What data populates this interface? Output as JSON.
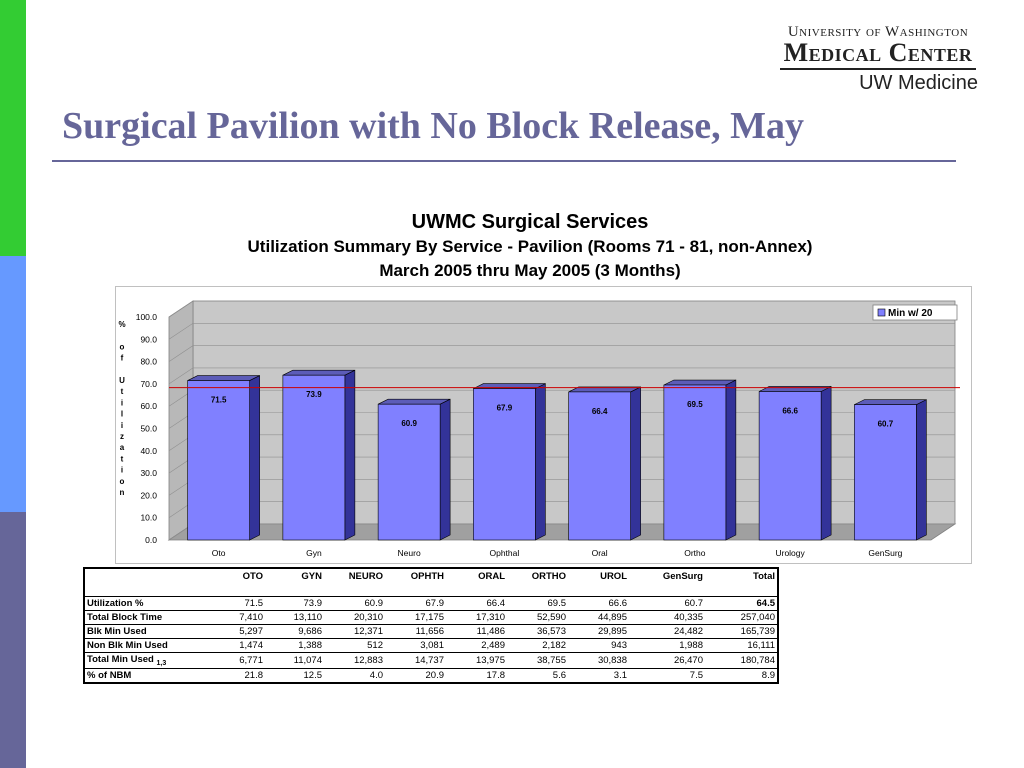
{
  "slide": {
    "title": "Surgical Pavilion with No Block Release, May",
    "accent_colors": [
      "#33cc33",
      "#6699ff",
      "#666699"
    ]
  },
  "logo": {
    "line1": "University of Washington",
    "line2": "Medical Center",
    "line3": "UW Medicine"
  },
  "heading": {
    "line1": "UWMC Surgical Services",
    "line2": "Utilization Summary By Service - Pavilion (Rooms 71 - 81, non-Annex)",
    "line3": "March 2005 thru May 2005 (3 Months)"
  },
  "chart_data": {
    "type": "bar",
    "categories": [
      "Oto",
      "Gyn",
      "Neuro",
      "Ophthal",
      "Oral",
      "Ortho",
      "Urology",
      "GenSurg"
    ],
    "values": [
      71.5,
      73.9,
      60.9,
      67.9,
      66.4,
      69.5,
      66.6,
      60.7
    ],
    "value_labels": [
      "71.5",
      "73.9",
      "60.9",
      "67.9",
      "66.4",
      "69.5",
      "66.6",
      "60.7"
    ],
    "ylabel": "% of Utilization",
    "ylim": [
      0,
      100
    ],
    "yticks": [
      "0.0",
      "10.0",
      "20.0",
      "30.0",
      "40.0",
      "50.0",
      "60.0",
      "70.0",
      "80.0",
      "90.0",
      "100.0"
    ],
    "reference_line": {
      "name": "Min w/ 20",
      "value": 69.2,
      "color": "#cc0000"
    },
    "legend": {
      "position": "top-right",
      "label": "Min w/ 20"
    },
    "bar_color": "#8080ff",
    "grid": true
  },
  "table": {
    "columns": [
      "",
      "OTO",
      "GYN",
      "NEURO",
      "OPHTH",
      "ORAL",
      "ORTHO",
      "UROL",
      "GenSurg",
      "Total"
    ],
    "rows": [
      {
        "label": "Utilization %",
        "sub": "",
        "values": [
          "71.5",
          "73.9",
          "60.9",
          "67.9",
          "66.4",
          "69.5",
          "66.6",
          "60.7"
        ],
        "total": "64.5",
        "total_bold": true
      },
      {
        "label": "Total Block Time",
        "sub": "",
        "values": [
          "7,410",
          "13,110",
          "20,310",
          "17,175",
          "17,310",
          "52,590",
          "44,895",
          "40,335"
        ],
        "total": "257,040",
        "total_bold": false
      },
      {
        "label": "Blk Min Used",
        "sub": "",
        "values": [
          "5,297",
          "9,686",
          "12,371",
          "11,656",
          "11,486",
          "36,573",
          "29,895",
          "24,482"
        ],
        "total": "165,739",
        "total_bold": false
      },
      {
        "label": "Non Blk Min Used",
        "sub": "",
        "values": [
          "1,474",
          "1,388",
          "512",
          "3,081",
          "2,489",
          "2,182",
          "943",
          "1,988"
        ],
        "total": "16,111",
        "total_bold": false
      },
      {
        "label": "Total Min Used",
        "sub": "1,3",
        "values": [
          "6,771",
          "11,074",
          "12,883",
          "14,737",
          "13,975",
          "38,755",
          "30,838",
          "26,470"
        ],
        "total": "180,784",
        "total_bold": false
      },
      {
        "label": "% of NBM",
        "sub": "",
        "values": [
          "21.8",
          "12.5",
          "4.0",
          "20.9",
          "17.8",
          "5.6",
          "3.1",
          "7.5"
        ],
        "total": "8.9",
        "total_bold": false
      }
    ]
  }
}
